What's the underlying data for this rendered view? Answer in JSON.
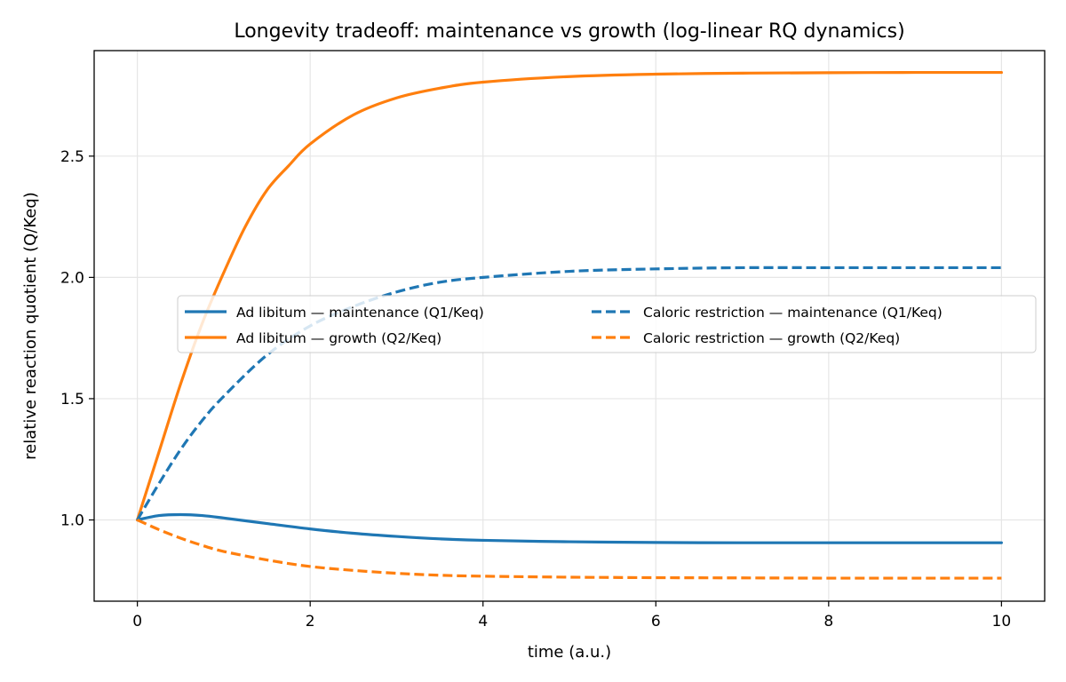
{
  "chart_data": {
    "type": "line",
    "title": "Longevity tradeoff: maintenance vs growth (log-linear RQ dynamics)",
    "xlabel": "time (a.u.)",
    "ylabel": "relative reaction quotient (Q/Keq)",
    "xlim": [
      -0.5,
      10.5
    ],
    "ylim": [
      0.665,
      2.935
    ],
    "xticks": [
      0,
      2,
      4,
      6,
      8,
      10
    ],
    "yticks": [
      1.0,
      1.5,
      2.0,
      2.5
    ],
    "xtick_labels": [
      "0",
      "2",
      "4",
      "6",
      "8",
      "10"
    ],
    "ytick_labels": [
      "1.0",
      "1.5",
      "2.0",
      "2.5"
    ],
    "grid": true,
    "legend_placement": "center-right",
    "legend_columns": 2,
    "series": [
      {
        "name": "Ad libitum — maintenance (Q1/Keq)",
        "color": "#1f77b4",
        "dash": "solid",
        "x": [
          0,
          0.25,
          0.5,
          0.75,
          1,
          1.5,
          2,
          2.5,
          3,
          3.5,
          4,
          5,
          6,
          7,
          8,
          9,
          10
        ],
        "y": [
          1.0,
          1.018,
          1.022,
          1.018,
          1.008,
          0.985,
          0.963,
          0.945,
          0.932,
          0.922,
          0.916,
          0.91,
          0.907,
          0.906,
          0.906,
          0.906,
          0.906
        ]
      },
      {
        "name": "Ad libitum — growth (Q2/Keq)",
        "color": "#ff7f0e",
        "dash": "solid",
        "x": [
          0,
          0.25,
          0.5,
          0.75,
          1,
          1.25,
          1.5,
          1.75,
          2,
          2.5,
          3,
          3.5,
          4,
          5,
          6,
          7,
          8,
          9,
          10
        ],
        "y": [
          1.0,
          1.28,
          1.56,
          1.81,
          2.02,
          2.21,
          2.36,
          2.46,
          2.55,
          2.67,
          2.74,
          2.78,
          2.805,
          2.828,
          2.838,
          2.842,
          2.844,
          2.845,
          2.845
        ]
      },
      {
        "name": "Caloric restriction — maintenance (Q1/Keq)",
        "color": "#1f77b4",
        "dash": "dashed",
        "x": [
          0,
          0.25,
          0.5,
          0.75,
          1,
          1.5,
          2,
          2.5,
          3,
          3.5,
          4,
          5,
          6,
          7,
          8,
          9,
          10
        ],
        "y": [
          1.0,
          1.15,
          1.29,
          1.41,
          1.51,
          1.68,
          1.8,
          1.88,
          1.94,
          1.98,
          2.0,
          2.025,
          2.035,
          2.04,
          2.04,
          2.04,
          2.04
        ]
      },
      {
        "name": "Caloric restriction — growth (Q2/Keq)",
        "color": "#ff7f0e",
        "dash": "dashed",
        "x": [
          0,
          0.25,
          0.5,
          0.75,
          1,
          1.5,
          2,
          2.5,
          3,
          3.5,
          4,
          5,
          6,
          7,
          8,
          9,
          10
        ],
        "y": [
          1.0,
          0.96,
          0.925,
          0.895,
          0.87,
          0.835,
          0.808,
          0.792,
          0.78,
          0.772,
          0.768,
          0.764,
          0.762,
          0.761,
          0.76,
          0.76,
          0.76
        ]
      }
    ]
  }
}
